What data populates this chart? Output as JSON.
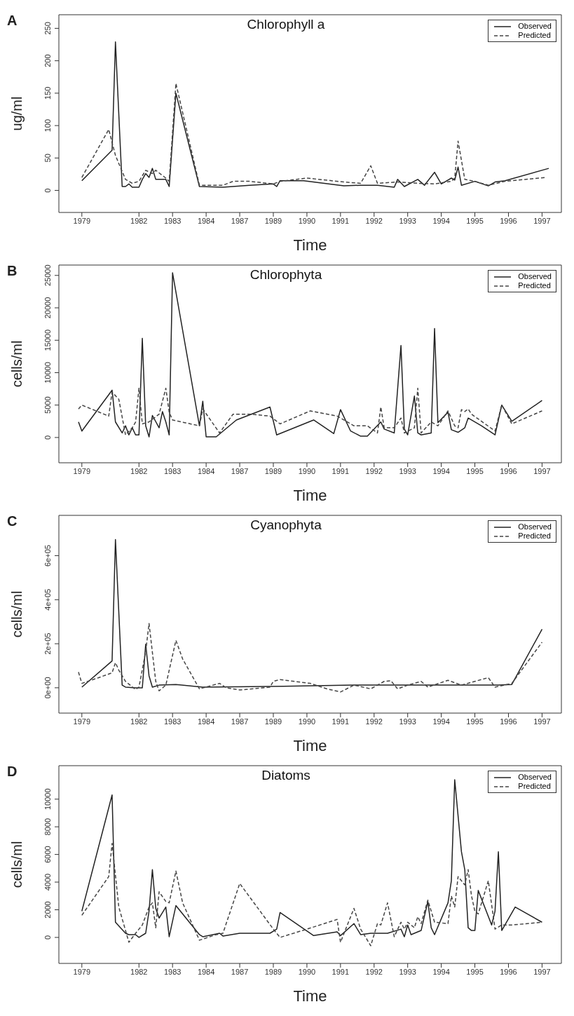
{
  "chart_data": [
    {
      "type": "line",
      "title": "Chlorophyll a",
      "xlabel": "Time",
      "ylabel": "ug/ml",
      "annotations": [
        "A"
      ],
      "legend": "top right",
      "categories": [
        null,
        "1979",
        null,
        null,
        null,
        null,
        null,
        null,
        null,
        null,
        null,
        null,
        null,
        null,
        null,
        null,
        null,
        null,
        "1982",
        null,
        null,
        null,
        null,
        null,
        null,
        null,
        null,
        null,
        "1983",
        null,
        null,
        null,
        null,
        null,
        null,
        null,
        null,
        null,
        "1984",
        null,
        null,
        null,
        null,
        null,
        null,
        null,
        null,
        null,
        "1987",
        null,
        null,
        null,
        null,
        null,
        null,
        null,
        null,
        null,
        "1989",
        null,
        null,
        null,
        null,
        null,
        null,
        null,
        null,
        null,
        "1990",
        null,
        null,
        null,
        null,
        null,
        null,
        null,
        null,
        null,
        "1991",
        null,
        null,
        null,
        null,
        null,
        null,
        null,
        null,
        null,
        "1992",
        null,
        null,
        null,
        null,
        null,
        null,
        null,
        null,
        null,
        "1993",
        null,
        null,
        null,
        null,
        null,
        null,
        null,
        null,
        null,
        "1994",
        null,
        null,
        null,
        null,
        null,
        null,
        null,
        null,
        null,
        "1995",
        null,
        null,
        null,
        null,
        null,
        null,
        null,
        null,
        null,
        "1996",
        null,
        null,
        null,
        null,
        null,
        null,
        null,
        null,
        null,
        "1997",
        null,
        null
      ],
      "ylim": [
        -34,
        271
      ],
      "yticks": [
        0,
        50,
        100,
        150,
        200,
        250
      ],
      "series": [
        {
          "name": "Observed",
          "color": "#222222",
          "line_style": "solid",
          "values": [
            null,
            15,
            null,
            null,
            null,
            null,
            null,
            null,
            null,
            null,
            62,
            229,
            null,
            6,
            6,
            10,
            5,
            null,
            5,
            17,
            26,
            20,
            34,
            17,
            null,
            null,
            17,
            6,
            null,
            150,
            null,
            null,
            null,
            null,
            null,
            null,
            6,
            null,
            null,
            null,
            null,
            null,
            null,
            5,
            null,
            null,
            null,
            null,
            null,
            null,
            null,
            8,
            null,
            null,
            null,
            null,
            null,
            null,
            10,
            6,
            15,
            null,
            null,
            null,
            null,
            null,
            null,
            15,
            null,
            null,
            null,
            null,
            null,
            null,
            null,
            null,
            null,
            null,
            null,
            7,
            null,
            null,
            null,
            null,
            8,
            null,
            null,
            null,
            null,
            8,
            null,
            null,
            null,
            null,
            5,
            17,
            null,
            6,
            null,
            null,
            null,
            17,
            null,
            8,
            null,
            null,
            28,
            null,
            10,
            null,
            null,
            19,
            16,
            36,
            8,
            null,
            null,
            null,
            14,
            null,
            null,
            null,
            7,
            null,
            13,
            null,
            null,
            15,
            null,
            null,
            null,
            null,
            null,
            null,
            null,
            null,
            null,
            null,
            null,
            null,
            34
          ]
        },
        {
          "name": "Predicted",
          "color": "#444444",
          "line_style": "dashed",
          "values": [
            null,
            20,
            null,
            null,
            null,
            null,
            null,
            null,
            null,
            94,
            null,
            54,
            null,
            null,
            17,
            null,
            11,
            null,
            14,
            null,
            31,
            null,
            26,
            31,
            null,
            null,
            19,
            14,
            null,
            165,
            null,
            null,
            null,
            null,
            null,
            null,
            8,
            null,
            null,
            null,
            null,
            null,
            null,
            8,
            null,
            null,
            14,
            null,
            null,
            null,
            null,
            14,
            null,
            null,
            null,
            null,
            null,
            null,
            10,
            null,
            14,
            null,
            null,
            null,
            null,
            null,
            null,
            null,
            19,
            null,
            null,
            null,
            null,
            null,
            null,
            null,
            null,
            null,
            null,
            13,
            null,
            null,
            null,
            null,
            11,
            null,
            null,
            38,
            null,
            11,
            null,
            null,
            null,
            null,
            null,
            13,
            null,
            null,
            null,
            null,
            null,
            11,
            null,
            null,
            null,
            null,
            10,
            null,
            null,
            null,
            null,
            14,
            19,
            76,
            null,
            17,
            null,
            null,
            14,
            null,
            null,
            null,
            8,
            null,
            null,
            null,
            null,
            14,
            null,
            null,
            null,
            null,
            null,
            null,
            null,
            null,
            null,
            null,
            null,
            20,
            null
          ]
        }
      ]
    },
    {
      "type": "line",
      "title": "Chlorophyta",
      "xlabel": "Time",
      "ylabel": "cells/ml",
      "annotations": [
        "B"
      ],
      "legend": "top right",
      "categories": [
        null,
        "1979",
        null,
        null,
        null,
        null,
        null,
        null,
        null,
        null,
        null,
        null,
        null,
        null,
        null,
        null,
        null,
        null,
        "1982",
        null,
        null,
        null,
        null,
        null,
        null,
        null,
        null,
        null,
        "1983",
        null,
        null,
        null,
        null,
        null,
        null,
        null,
        null,
        null,
        "1984",
        null,
        null,
        null,
        null,
        null,
        null,
        null,
        null,
        null,
        "1987",
        null,
        null,
        null,
        null,
        null,
        null,
        null,
        null,
        null,
        "1989",
        null,
        null,
        null,
        null,
        null,
        null,
        null,
        null,
        null,
        "1990",
        null,
        null,
        null,
        null,
        null,
        null,
        null,
        null,
        null,
        "1991",
        null,
        null,
        null,
        null,
        null,
        null,
        null,
        null,
        null,
        "1992",
        null,
        null,
        null,
        null,
        null,
        null,
        null,
        null,
        null,
        "1993",
        null,
        null,
        null,
        null,
        null,
        null,
        null,
        null,
        null,
        "1994",
        null,
        null,
        null,
        null,
        null,
        null,
        null,
        null,
        null,
        "1995",
        null,
        null,
        null,
        null,
        null,
        null,
        null,
        null,
        null,
        "1996",
        null,
        null,
        null,
        null,
        null,
        null,
        null,
        null,
        null,
        "1997",
        null,
        null
      ],
      "ylim": [
        -3900,
        26600
      ],
      "yticks": [
        0,
        5000,
        10000,
        15000,
        20000,
        25000
      ],
      "series": [
        {
          "name": "Observed",
          "color": "#222222",
          "line_style": "solid",
          "values": [
            2400,
            1000,
            null,
            null,
            null,
            null,
            null,
            null,
            null,
            null,
            7300,
            2400,
            null,
            700,
            1800,
            400,
            1500,
            400,
            400,
            15300,
            1800,
            100,
            3400,
            null,
            1500,
            4000,
            2400,
            400,
            25400,
            null,
            null,
            null,
            null,
            null,
            null,
            null,
            1800,
            5600,
            100,
            null,
            null,
            100,
            null,
            null,
            null,
            null,
            null,
            2700,
            null,
            null,
            null,
            null,
            null,
            null,
            null,
            null,
            null,
            4700,
            null,
            400,
            null,
            null,
            null,
            null,
            null,
            null,
            null,
            null,
            null,
            null,
            2700,
            null,
            null,
            null,
            null,
            null,
            600,
            null,
            4300,
            null,
            null,
            1000,
            null,
            null,
            200,
            null,
            200,
            null,
            null,
            null,
            2400,
            1300,
            null,
            null,
            700,
            null,
            14200,
            1300,
            400,
            null,
            6400,
            700,
            400,
            null,
            null,
            700,
            16800,
            2300,
            null,
            null,
            3900,
            1200,
            null,
            800,
            null,
            1500,
            3000,
            null,
            null,
            null,
            1800,
            null,
            null,
            null,
            400,
            null,
            5000,
            null,
            null,
            2500,
            null,
            null,
            null,
            null,
            null,
            null,
            null,
            null,
            5700,
            null,
            null
          ]
        },
        {
          "name": "Predicted",
          "color": "#444444",
          "line_style": "dashed",
          "values": [
            4400,
            5000,
            null,
            null,
            null,
            null,
            null,
            null,
            null,
            3300,
            7000,
            null,
            5900,
            null,
            400,
            null,
            1500,
            2400,
            7600,
            2100,
            null,
            2400,
            null,
            null,
            3600,
            null,
            7600,
            3900,
            2700,
            null,
            null,
            null,
            null,
            null,
            null,
            null,
            1800,
            4400,
            null,
            null,
            null,
            null,
            700,
            null,
            null,
            null,
            3600,
            null,
            null,
            null,
            null,
            3600,
            null,
            null,
            null,
            null,
            null,
            3300,
            null,
            null,
            2100,
            null,
            null,
            null,
            null,
            null,
            null,
            null,
            null,
            4100,
            null,
            null,
            null,
            null,
            null,
            null,
            null,
            3300,
            null,
            null,
            null,
            null,
            1800,
            null,
            null,
            null,
            1800,
            null,
            null,
            700,
            4700,
            1500,
            null,
            null,
            1500,
            null,
            3000,
            700,
            null,
            null,
            1500,
            7600,
            700,
            null,
            null,
            2400,
            null,
            1800,
            null,
            null,
            4100,
            null,
            1800,
            1500,
            4300,
            4000,
            4400,
            3600,
            null,
            null,
            null,
            null,
            null,
            null,
            1000,
            null,
            5000,
            null,
            null,
            2100,
            null,
            null,
            null,
            null,
            null,
            null,
            null,
            null,
            4100,
            null,
            null
          ]
        }
      ]
    },
    {
      "type": "line",
      "title": "Cyanophyta",
      "xlabel": "Time",
      "ylabel": "cells/ml",
      "annotations": [
        "C"
      ],
      "legend": "top right",
      "categories": [
        null,
        "1979",
        null,
        null,
        null,
        null,
        null,
        null,
        null,
        null,
        null,
        null,
        null,
        null,
        null,
        null,
        null,
        null,
        "1982",
        null,
        null,
        null,
        null,
        null,
        null,
        null,
        null,
        null,
        "1983",
        null,
        null,
        null,
        null,
        null,
        null,
        null,
        null,
        null,
        "1984",
        null,
        null,
        null,
        null,
        null,
        null,
        null,
        null,
        null,
        "1987",
        null,
        null,
        null,
        null,
        null,
        null,
        null,
        null,
        null,
        "1989",
        null,
        null,
        null,
        null,
        null,
        null,
        null,
        null,
        null,
        "1990",
        null,
        null,
        null,
        null,
        null,
        null,
        null,
        null,
        null,
        "1991",
        null,
        null,
        null,
        null,
        null,
        null,
        null,
        null,
        null,
        "1992",
        null,
        null,
        null,
        null,
        null,
        null,
        null,
        null,
        null,
        "1993",
        null,
        null,
        null,
        null,
        null,
        null,
        null,
        null,
        null,
        "1994",
        null,
        null,
        null,
        null,
        null,
        null,
        null,
        null,
        null,
        "1995",
        null,
        null,
        null,
        null,
        null,
        null,
        null,
        null,
        null,
        "1996",
        null,
        null,
        null,
        null,
        null,
        null,
        null,
        null,
        null,
        "1997",
        null,
        null
      ],
      "ylim": [
        -115000,
        783000
      ],
      "yticks": [
        {
          "value": 0,
          "label": "0e+00"
        },
        {
          "value": 200000,
          "label": "2e+05"
        },
        {
          "value": 400000,
          "label": "4e+05"
        },
        {
          "value": 600000,
          "label": "6e+05"
        }
      ],
      "series": [
        {
          "name": "Observed",
          "color": "#222222",
          "line_style": "solid",
          "values": [
            null,
            3000,
            null,
            null,
            null,
            null,
            null,
            null,
            null,
            null,
            122000,
            673000,
            null,
            12000,
            3000,
            null,
            null,
            0,
            null,
            0,
            198000,
            54000,
            3000,
            null,
            12000,
            null,
            null,
            null,
            null,
            15000,
            null,
            null,
            null,
            null,
            null,
            null,
            null,
            3000,
            null,
            null,
            null,
            null,
            null,
            null,
            null,
            null,
            null,
            null,
            null,
            null,
            null,
            null,
            null,
            null,
            null,
            null,
            null,
            null,
            null,
            null,
            null,
            7000,
            null,
            null,
            null,
            null,
            null,
            null,
            null,
            null,
            null,
            null,
            null,
            null,
            null,
            null,
            null,
            null,
            null,
            null,
            null,
            null,
            12000,
            null,
            null,
            null,
            null,
            null,
            null,
            null,
            null,
            null,
            null,
            null,
            null,
            null,
            null,
            null,
            null,
            null,
            null,
            null,
            null,
            12000,
            null,
            null,
            null,
            null,
            null,
            null,
            null,
            null,
            null,
            null,
            null,
            null,
            null,
            null,
            null,
            null,
            null,
            null,
            null,
            null,
            null,
            12000,
            null,
            null,
            null,
            15000,
            null,
            null,
            null,
            null,
            null,
            null,
            null,
            null,
            266000,
            null,
            null
          ]
        },
        {
          "name": "Predicted",
          "color": "#444444",
          "line_style": "dashed",
          "values": [
            71000,
            20000,
            null,
            null,
            null,
            null,
            46000,
            null,
            null,
            null,
            68000,
            114000,
            80000,
            null,
            29000,
            null,
            null,
            -8000,
            3000,
            null,
            164000,
            292000,
            null,
            29000,
            -14000,
            null,
            12000,
            null,
            null,
            215000,
            null,
            131000,
            null,
            null,
            null,
            null,
            -5000,
            null,
            null,
            null,
            null,
            null,
            20000,
            null,
            0,
            null,
            null,
            null,
            -10000,
            null,
            null,
            null,
            null,
            null,
            null,
            null,
            null,
            3000,
            29000,
            null,
            37000,
            null,
            null,
            null,
            null,
            null,
            null,
            null,
            null,
            20000,
            null,
            null,
            null,
            null,
            -5000,
            null,
            null,
            null,
            -19000,
            null,
            null,
            null,
            12000,
            null,
            null,
            null,
            null,
            -5000,
            null,
            null,
            null,
            29000,
            null,
            32000,
            null,
            -5000,
            null,
            null,
            12000,
            null,
            null,
            null,
            29000,
            null,
            3000,
            null,
            null,
            null,
            null,
            null,
            34000,
            null,
            null,
            null,
            12000,
            null,
            null,
            null,
            29000,
            null,
            null,
            null,
            46000,
            null,
            3000,
            null,
            null,
            null,
            null,
            20000,
            null,
            null,
            null,
            null,
            null,
            null,
            null,
            null,
            207000,
            null,
            null
          ]
        }
      ]
    },
    {
      "type": "line",
      "title": "Diatoms",
      "xlabel": "Time",
      "ylabel": "cells/ml",
      "annotations": [
        "D"
      ],
      "legend": "top right",
      "categories": [
        null,
        "1979",
        null,
        null,
        null,
        null,
        null,
        null,
        null,
        null,
        null,
        null,
        null,
        null,
        null,
        null,
        null,
        null,
        "1982",
        null,
        null,
        null,
        null,
        null,
        null,
        null,
        null,
        null,
        "1983",
        null,
        null,
        null,
        null,
        null,
        null,
        null,
        null,
        null,
        "1984",
        null,
        null,
        null,
        null,
        null,
        null,
        null,
        null,
        null,
        "1987",
        null,
        null,
        null,
        null,
        null,
        null,
        null,
        null,
        null,
        "1989",
        null,
        null,
        null,
        null,
        null,
        null,
        null,
        null,
        null,
        "1990",
        null,
        null,
        null,
        null,
        null,
        null,
        null,
        null,
        null,
        "1991",
        null,
        null,
        null,
        null,
        null,
        null,
        null,
        null,
        null,
        "1992",
        null,
        null,
        null,
        null,
        null,
        null,
        null,
        null,
        null,
        "1993",
        null,
        null,
        null,
        null,
        null,
        null,
        null,
        null,
        null,
        "1994",
        null,
        null,
        null,
        null,
        null,
        null,
        null,
        null,
        null,
        "1995",
        null,
        null,
        null,
        null,
        null,
        null,
        null,
        null,
        null,
        "1996",
        null,
        null,
        null,
        null,
        null,
        null,
        null,
        null,
        null,
        "1997",
        null,
        null
      ],
      "ylim": [
        -1880,
        12420
      ],
      "yticks": [
        0,
        2000,
        4000,
        6000,
        8000,
        10000
      ],
      "series": [
        {
          "name": "Observed",
          "color": "#222222",
          "line_style": "solid",
          "values": [
            null,
            1900,
            null,
            null,
            null,
            null,
            null,
            null,
            null,
            null,
            10300,
            1100,
            null,
            null,
            300,
            200,
            null,
            200,
            0,
            null,
            300,
            1900,
            4900,
            2100,
            1400,
            null,
            2200,
            50,
            null,
            2300,
            null,
            null,
            null,
            null,
            null,
            null,
            200,
            50,
            null,
            null,
            null,
            null,
            300,
            100,
            null,
            null,
            null,
            null,
            300,
            null,
            null,
            null,
            null,
            null,
            null,
            null,
            null,
            300,
            null,
            600,
            1800,
            null,
            null,
            null,
            null,
            null,
            null,
            null,
            null,
            null,
            130,
            null,
            null,
            null,
            null,
            null,
            null,
            400,
            130,
            null,
            null,
            null,
            1000,
            null,
            200,
            null,
            null,
            300,
            null,
            null,
            null,
            null,
            300,
            null,
            null,
            null,
            600,
            50,
            900,
            200,
            null,
            null,
            500,
            null,
            2600,
            700,
            200,
            null,
            null,
            null,
            2500,
            4100,
            11400,
            null,
            6200,
            4900,
            700,
            500,
            500,
            3400,
            null,
            null,
            null,
            900,
            1900,
            6200,
            500,
            null,
            null,
            null,
            2200,
            null,
            null,
            null,
            null,
            null,
            null,
            null,
            1100,
            null,
            null
          ]
        },
        {
          "name": "Predicted",
          "color": "#444444",
          "line_style": "dashed",
          "values": [
            null,
            1600,
            null,
            null,
            null,
            null,
            null,
            null,
            null,
            4400,
            6800,
            null,
            2200,
            null,
            null,
            -350,
            null,
            300,
            null,
            900,
            null,
            2200,
            2500,
            700,
            3300,
            null,
            2600,
            2500,
            null,
            4800,
            null,
            2500,
            null,
            null,
            null,
            null,
            -200,
            null,
            null,
            null,
            null,
            200,
            null,
            300,
            null,
            null,
            null,
            null,
            3900,
            null,
            null,
            null,
            null,
            null,
            null,
            null,
            null,
            null,
            600,
            null,
            0,
            null,
            null,
            null,
            null,
            null,
            null,
            null,
            600,
            null,
            null,
            null,
            null,
            null,
            null,
            null,
            null,
            1300,
            -350,
            null,
            null,
            null,
            2100,
            null,
            600,
            null,
            null,
            -600,
            null,
            1000,
            900,
            null,
            2500,
            null,
            50,
            null,
            1100,
            600,
            1100,
            null,
            700,
            1500,
            1000,
            null,
            2700,
            null,
            1100,
            null,
            null,
            null,
            1000,
            3000,
            2200,
            4400,
            null,
            3800,
            4900,
            3000,
            1900,
            1700,
            null,
            null,
            4100,
            null,
            600,
            null,
            900,
            null,
            null,
            900,
            null,
            null,
            null,
            null,
            null,
            null,
            null,
            null,
            1100,
            null,
            null
          ]
        }
      ]
    }
  ]
}
